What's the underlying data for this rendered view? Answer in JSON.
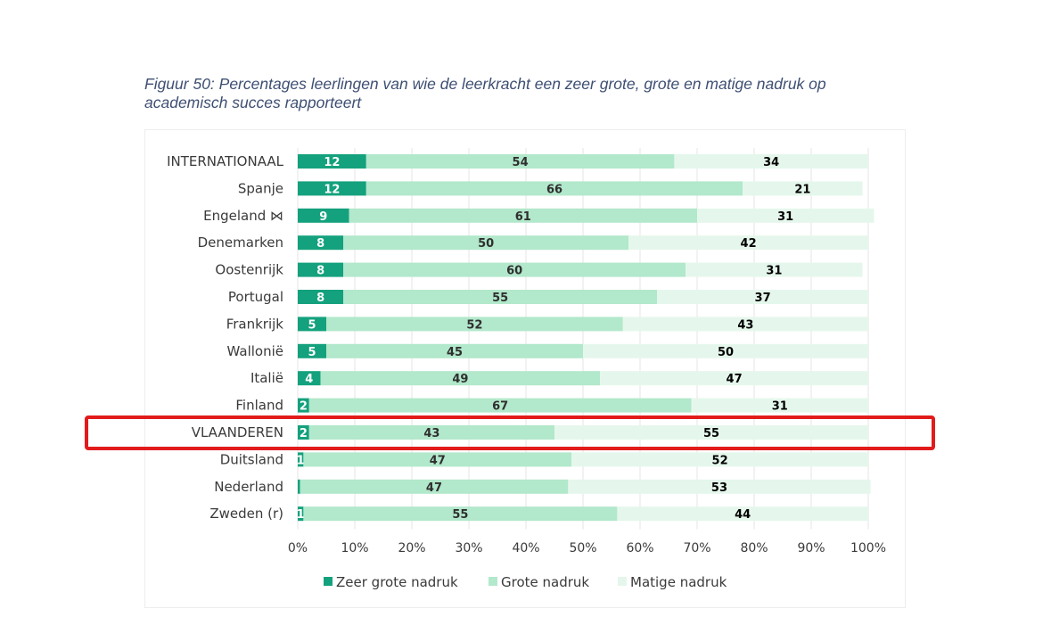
{
  "caption": {
    "line1": "Figuur 50: Percentages leerlingen van wie de leerkracht een zeer grote, grote en matige nadruk op",
    "line2": "academisch succes rapporteert"
  },
  "colors": {
    "zeer_grote": "#14a17d",
    "grote": "#b2e8cb",
    "matige": "#e5f7ec",
    "highlight": "#e21b1b",
    "value_light": "#ffffff",
    "value_dark": "#2f2f2f",
    "value_black": "#000000"
  },
  "chart_data": {
    "type": "bar",
    "orientation": "horizontal",
    "stacked": true,
    "categories": [
      "INTERNATIONAAL",
      "Spanje",
      "Engeland ⋈",
      "Denemarken",
      "Oostenrijk",
      "Portugal",
      "Frankrijk",
      "Wallonië",
      "Italië",
      "Finland",
      "VLAANDEREN",
      "Duitsland",
      "Nederland",
      "Zweden (r)"
    ],
    "series": [
      {
        "name": "Zeer grote nadruk",
        "values": [
          12,
          12,
          9,
          8,
          8,
          8,
          5,
          5,
          4,
          2,
          2,
          1,
          0.4,
          1
        ],
        "labels": [
          "12",
          "12",
          "9",
          "8",
          "8",
          "8",
          "5",
          "5",
          "4",
          "2",
          "2",
          "1",
          "",
          "1"
        ]
      },
      {
        "name": "Grote nadruk",
        "values": [
          54,
          66,
          61,
          50,
          60,
          55,
          52,
          45,
          49,
          67,
          43,
          47,
          47,
          55
        ],
        "labels": [
          "54",
          "66",
          "61",
          "50",
          "60",
          "55",
          "52",
          "45",
          "49",
          "67",
          "43",
          "47",
          "47",
          "55"
        ]
      },
      {
        "name": "Matige nadruk",
        "values": [
          34,
          21,
          31,
          42,
          31,
          37,
          43,
          50,
          47,
          31,
          55,
          52,
          53,
          44
        ],
        "labels": [
          "34",
          "21",
          "31",
          "42",
          "31",
          "37",
          "43",
          "50",
          "47",
          "31",
          "55",
          "52",
          "53",
          "44"
        ]
      }
    ],
    "x_tick_labels": [
      "0%",
      "10%",
      "20%",
      "30%",
      "40%",
      "50%",
      "60%",
      "70%",
      "80%",
      "90%",
      "100%"
    ],
    "xlim": [
      0,
      100
    ],
    "grid": true,
    "legend_position": "bottom",
    "highlighted_category": "VLAANDEREN"
  }
}
